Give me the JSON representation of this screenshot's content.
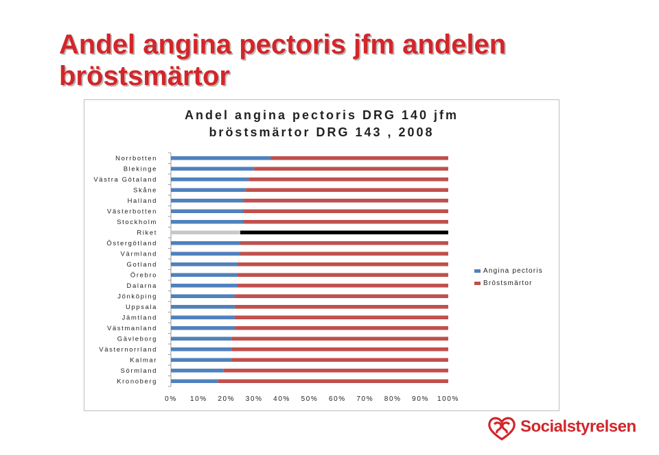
{
  "slide": {
    "title": "Andel angina pectoris jfm andelen bröstsmärtor"
  },
  "logo": {
    "text": "Socialstyrelsen"
  },
  "chart_data": {
    "type": "bar",
    "orientation": "horizontal",
    "stacked": "percent",
    "title_lines": [
      "Andel angina pectoris DRG 140 jfm",
      "bröstsmärtor DRG 143 , 2008"
    ],
    "categories": [
      "Norrbotten",
      "Blekinge",
      "Västra Götaland",
      "Skåne",
      "Halland",
      "Västerbotten",
      "Stockholm",
      "Riket",
      "Östergötland",
      "Värmland",
      "Gotland",
      "Örebro",
      "Dalarna",
      "Jönköping",
      "Uppsala",
      "Jämtland",
      "Västmanland",
      "Gävleborg",
      "Västernorrland",
      "Kalmar",
      "Sörmland",
      "Kronoberg"
    ],
    "series": [
      {
        "name": "Angina pectoris",
        "color": "#4f81bd",
        "values": [
          36,
          30,
          28,
          27,
          26,
          26,
          26,
          25,
          25,
          25,
          24,
          24,
          24,
          23,
          23,
          23,
          23,
          22,
          22,
          22,
          19,
          17
        ]
      },
      {
        "name": "Bröstsmärtor",
        "color": "#c0504d",
        "values": [
          64,
          70,
          72,
          73,
          74,
          74,
          74,
          75,
          75,
          75,
          76,
          76,
          76,
          77,
          77,
          77,
          77,
          78,
          78,
          78,
          81,
          83
        ]
      }
    ],
    "highlight": {
      "category": "Riket",
      "colors": [
        "#c8c8c8",
        "#000000"
      ]
    },
    "x_ticks": [
      "0%",
      "10%",
      "20%",
      "30%",
      "40%",
      "50%",
      "60%",
      "70%",
      "80%",
      "90%",
      "100%"
    ],
    "xlim": [
      0,
      100
    ],
    "legend_position": "right",
    "grid": false
  }
}
